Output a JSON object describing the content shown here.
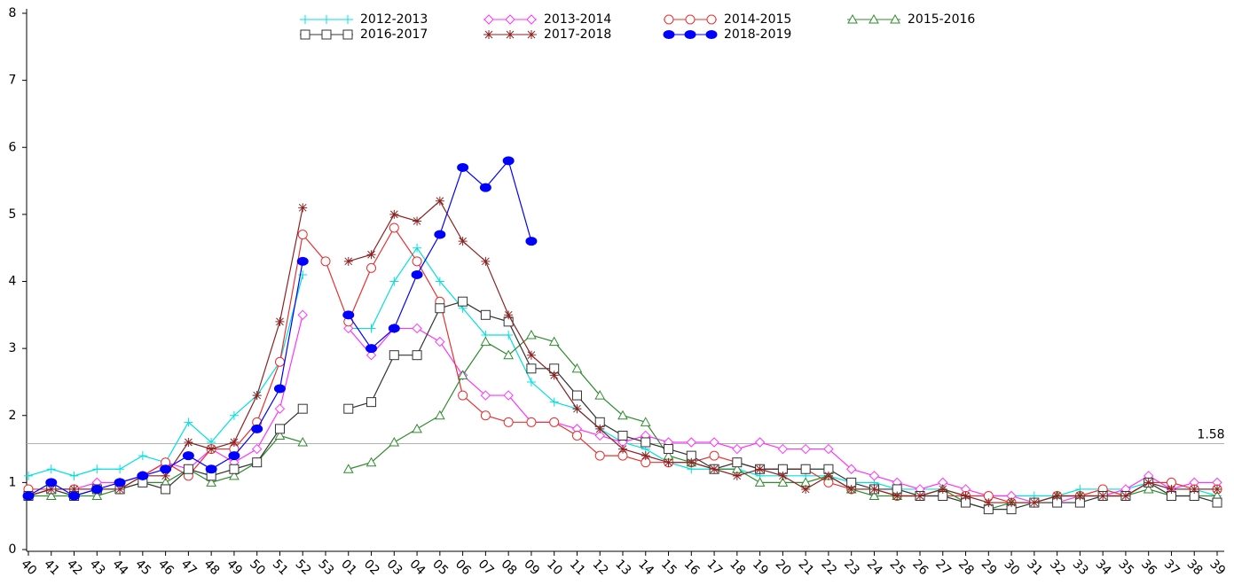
{
  "chart_data": {
    "type": "line",
    "categories": [
      "40",
      "41",
      "42",
      "43",
      "44",
      "45",
      "46",
      "47",
      "48",
      "49",
      "50",
      "51",
      "52",
      "53",
      "01",
      "02",
      "03",
      "04",
      "05",
      "06",
      "07",
      "08",
      "09",
      "10",
      "11",
      "12",
      "13",
      "14",
      "15",
      "16",
      "17",
      "18",
      "19",
      "20",
      "21",
      "22",
      "23",
      "24",
      "25",
      "26",
      "27",
      "28",
      "29",
      "30",
      "31",
      "32",
      "33",
      "34",
      "35",
      "36",
      "37",
      "38",
      "39"
    ],
    "ylim": [
      0,
      8
    ],
    "yticks": [
      0,
      1,
      2,
      3,
      4,
      5,
      6,
      7,
      8
    ],
    "hline": {
      "value": 1.58,
      "color": "#b0b0b0"
    },
    "series": [
      {
        "name": "2012-2013",
        "color": "#00e0e0",
        "marker": "plus",
        "values": [
          1.1,
          1.2,
          1.1,
          1.2,
          1.2,
          1.4,
          1.3,
          1.9,
          1.6,
          2.0,
          2.3,
          2.8,
          4.1,
          null,
          3.3,
          3.3,
          4.0,
          4.5,
          4.0,
          3.6,
          3.2,
          3.2,
          2.5,
          2.2,
          2.1,
          1.8,
          1.6,
          1.5,
          1.3,
          1.2,
          1.2,
          1.2,
          1.1,
          1.1,
          1.1,
          1.1,
          1.0,
          1.0,
          0.9,
          0.9,
          0.9,
          0.8,
          0.8,
          0.8,
          0.8,
          0.8,
          0.9,
          0.9,
          0.9,
          1.0,
          0.9,
          0.9,
          0.8
        ]
      },
      {
        "name": "2013-2014",
        "color": "#ff33ff",
        "marker": "diamond",
        "values": [
          0.8,
          0.9,
          0.9,
          1.0,
          1.0,
          1.1,
          1.3,
          1.2,
          1.5,
          1.3,
          1.5,
          2.1,
          3.5,
          null,
          3.3,
          2.9,
          3.3,
          3.3,
          3.1,
          2.6,
          2.3,
          2.3,
          1.9,
          1.9,
          1.8,
          1.7,
          1.6,
          1.7,
          1.6,
          1.6,
          1.6,
          1.5,
          1.6,
          1.5,
          1.5,
          1.5,
          1.2,
          1.1,
          1.0,
          0.9,
          1.0,
          0.9,
          0.8,
          0.8,
          0.7,
          0.7,
          0.8,
          0.8,
          0.9,
          1.1,
          0.9,
          1.0,
          1.0
        ]
      },
      {
        "name": "2014-2015",
        "color": "#e83030",
        "marker": "circle",
        "values": [
          0.9,
          0.9,
          0.9,
          0.9,
          0.9,
          1.1,
          1.3,
          1.1,
          1.5,
          1.5,
          1.9,
          2.8,
          4.7,
          4.3,
          3.4,
          4.2,
          4.8,
          4.3,
          3.7,
          2.3,
          2.0,
          1.9,
          1.9,
          1.9,
          1.7,
          1.4,
          1.4,
          1.3,
          1.3,
          1.3,
          1.4,
          1.3,
          1.2,
          1.2,
          1.2,
          1.0,
          0.9,
          0.9,
          0.8,
          0.8,
          0.8,
          0.8,
          0.8,
          0.7,
          0.7,
          0.8,
          0.8,
          0.9,
          0.8,
          1.0,
          1.0,
          0.9,
          0.9
        ]
      },
      {
        "name": "2015-2016",
        "color": "#2e8b2e",
        "marker": "triangle",
        "values": [
          0.8,
          0.8,
          0.8,
          0.8,
          0.9,
          1.0,
          1.0,
          1.2,
          1.0,
          1.1,
          1.3,
          1.7,
          1.6,
          null,
          1.2,
          1.3,
          1.6,
          1.8,
          2.0,
          2.6,
          3.1,
          2.9,
          3.2,
          3.1,
          2.7,
          2.3,
          2.0,
          1.9,
          1.4,
          1.3,
          1.2,
          1.2,
          1.0,
          1.0,
          1.0,
          1.1,
          0.9,
          0.8,
          0.8,
          0.8,
          0.9,
          0.7,
          0.6,
          0.7,
          0.7,
          0.8,
          0.8,
          0.8,
          0.8,
          0.9,
          0.8,
          0.8,
          0.8
        ]
      },
      {
        "name": "2016-2017",
        "color": "#333333",
        "marker": "square",
        "values": [
          0.8,
          0.9,
          0.8,
          0.9,
          0.9,
          1.0,
          0.9,
          1.2,
          1.1,
          1.2,
          1.3,
          1.8,
          2.1,
          null,
          2.1,
          2.2,
          2.9,
          2.9,
          3.6,
          3.7,
          3.5,
          3.4,
          2.7,
          2.7,
          2.3,
          1.9,
          1.7,
          1.6,
          1.5,
          1.4,
          1.2,
          1.3,
          1.2,
          1.2,
          1.2,
          1.2,
          1.0,
          0.9,
          0.9,
          0.8,
          0.8,
          0.7,
          0.6,
          0.6,
          0.7,
          0.7,
          0.7,
          0.8,
          0.8,
          1.0,
          0.8,
          0.8,
          0.7
        ]
      },
      {
        "name": "2017-2018",
        "color": "#8b2222",
        "marker": "star",
        "values": [
          0.8,
          0.9,
          0.9,
          0.9,
          0.9,
          1.1,
          1.1,
          1.6,
          1.5,
          1.6,
          2.3,
          3.4,
          5.1,
          null,
          4.3,
          4.4,
          5.0,
          4.9,
          5.2,
          4.6,
          4.3,
          3.5,
          2.9,
          2.6,
          2.1,
          1.8,
          1.5,
          1.4,
          1.3,
          1.3,
          1.2,
          1.1,
          1.2,
          1.1,
          0.9,
          1.1,
          0.9,
          0.9,
          0.8,
          0.8,
          0.9,
          0.8,
          0.7,
          0.7,
          0.7,
          0.8,
          0.8,
          0.8,
          0.8,
          1.0,
          0.9,
          0.9,
          0.9
        ]
      },
      {
        "name": "2018-2019",
        "color": "#0000ff",
        "marker": "dot",
        "values": [
          0.8,
          1.0,
          0.8,
          0.9,
          1.0,
          1.1,
          1.2,
          1.4,
          1.2,
          1.4,
          1.8,
          2.4,
          4.3,
          null,
          3.5,
          3.0,
          3.3,
          4.1,
          4.7,
          5.7,
          5.4,
          5.8,
          4.6,
          null,
          null,
          null,
          null,
          null,
          null,
          null,
          null,
          null,
          null,
          null,
          null,
          null,
          null,
          null,
          null,
          null,
          null,
          null,
          null,
          null,
          null,
          null,
          null,
          null,
          null,
          null,
          null,
          null,
          null
        ]
      }
    ]
  }
}
